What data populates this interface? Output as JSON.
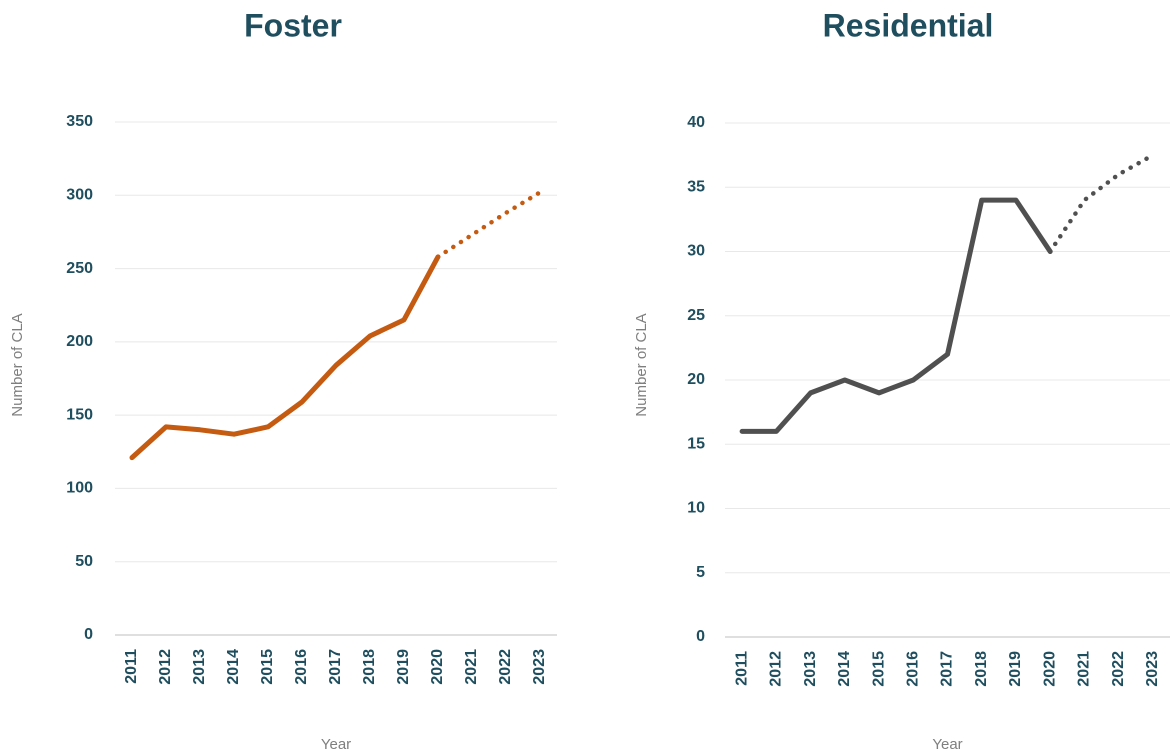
{
  "chart_data": [
    {
      "type": "line",
      "title": "Foster",
      "x_label": "Year",
      "y_label": "Number of CLA",
      "categories": [
        "2011",
        "2012",
        "2013",
        "2014",
        "2015",
        "2016",
        "2017",
        "2018",
        "2019",
        "2020",
        "2021",
        "2022",
        "2023"
      ],
      "series": [
        {
          "color": "#c55a11",
          "dashed": false,
          "values": [
            121,
            142,
            140,
            137,
            142,
            159,
            184,
            204,
            215,
            258,
            null,
            null,
            null
          ]
        },
        {
          "color": "#c55a11",
          "dashed": true,
          "values": [
            null,
            null,
            null,
            null,
            null,
            null,
            null,
            null,
            null,
            258,
            273,
            288,
            302
          ]
        }
      ],
      "ylim": [
        0,
        350
      ],
      "yticks": [
        0,
        50,
        100,
        150,
        200,
        250,
        300,
        350
      ],
      "grid": true
    },
    {
      "type": "line",
      "title": "Residential",
      "x_label": "Year",
      "y_label": "Number of CLA",
      "categories": [
        "2011",
        "2012",
        "2013",
        "2014",
        "2015",
        "2016",
        "2017",
        "2018",
        "2019",
        "2020",
        "2021",
        "2022",
        "2023"
      ],
      "series": [
        {
          "color": "#505050",
          "dashed": false,
          "values": [
            16,
            16,
            19,
            20,
            19,
            20,
            22,
            34,
            34,
            30,
            null,
            null,
            null
          ]
        },
        {
          "color": "#505050",
          "dashed": true,
          "values": [
            null,
            null,
            null,
            null,
            null,
            null,
            null,
            null,
            null,
            30,
            34,
            36,
            37.5
          ]
        }
      ],
      "ylim": [
        0,
        40
      ],
      "yticks": [
        0,
        5,
        10,
        15,
        20,
        25,
        30,
        35,
        40
      ],
      "grid": true
    }
  ]
}
